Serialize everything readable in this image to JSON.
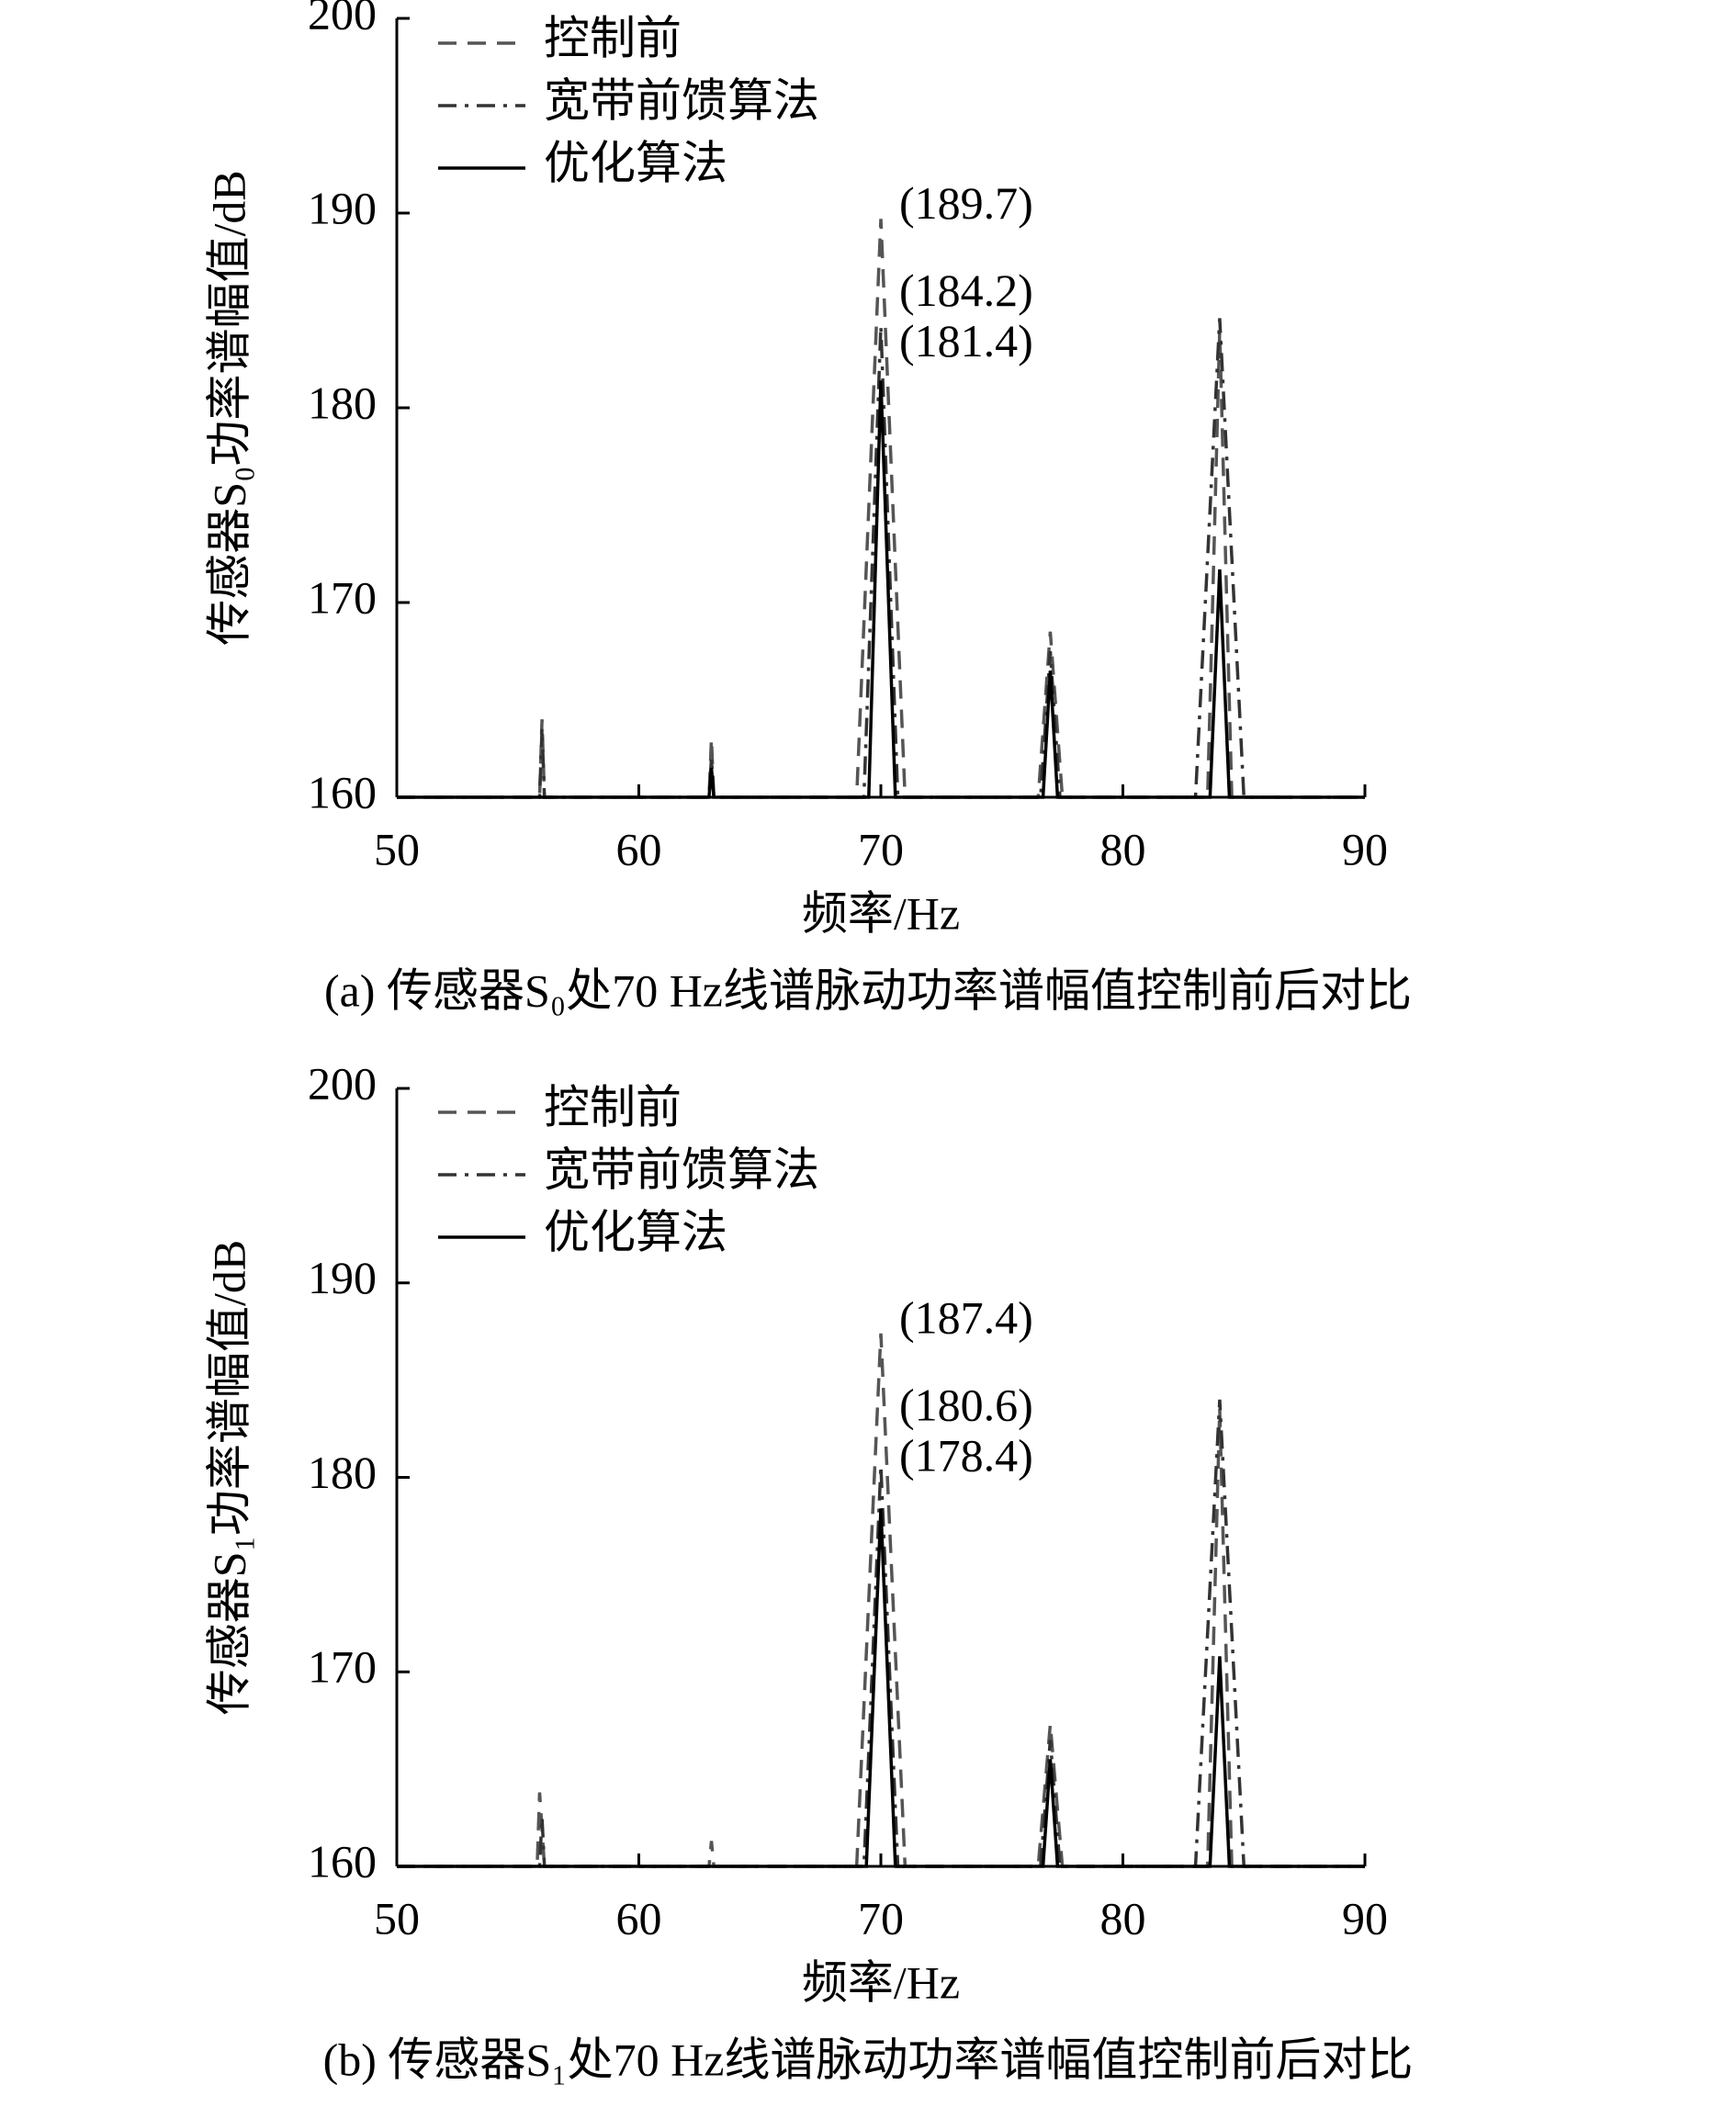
{
  "chart_data": [
    {
      "type": "line",
      "xlabel": "频率/Hz",
      "ylabel": "传感器S₀功率谱幅值/dB",
      "caption": "(a) 传感器S₀处70 Hz线谱脉动功率谱幅值控制前后对比",
      "xlim": [
        50,
        90
      ],
      "ylim": [
        160,
        200
      ],
      "xticks": [
        50,
        60,
        70,
        80,
        90
      ],
      "yticks": [
        160,
        170,
        180,
        190,
        200
      ],
      "legend": "upper left",
      "series": [
        {
          "name": "控制前",
          "color": "#555555",
          "style": "dashed",
          "x": [
            50,
            55.9,
            56,
            56.1,
            62.9,
            63,
            63.1,
            69,
            70,
            71,
            76.5,
            77,
            77.5,
            83.5,
            84,
            84.5,
            90
          ],
          "values": [
            160,
            160,
            164,
            160,
            160,
            163,
            160,
            160,
            189.7,
            160,
            160,
            168.5,
            160,
            160,
            184,
            160,
            160
          ]
        },
        {
          "name": "宽带前馈算法",
          "color": "#333333",
          "style": "dashdot",
          "x": [
            50,
            55.9,
            56,
            56.1,
            62.9,
            63,
            63.1,
            69.3,
            70,
            70.7,
            76.6,
            77,
            77.4,
            83,
            84,
            85,
            90
          ],
          "values": [
            160,
            160,
            163.5,
            160,
            160,
            162,
            160,
            160,
            184.2,
            160,
            160,
            167.5,
            160,
            160,
            184.6,
            160,
            160
          ]
        },
        {
          "name": "优化算法",
          "color": "#000000",
          "style": "solid",
          "x": [
            50,
            62.9,
            63,
            63.1,
            69.5,
            70,
            70.6,
            76.7,
            77,
            77.3,
            83.6,
            84,
            84.4,
            90
          ],
          "values": [
            160,
            160,
            161.5,
            160,
            160,
            181.4,
            160,
            160,
            166.5,
            160,
            160,
            171.7,
            160,
            160
          ]
        }
      ],
      "annotations": [
        "(189.7)",
        "(184.2)",
        "(181.4)"
      ]
    },
    {
      "type": "line",
      "xlabel": "频率/Hz",
      "ylabel": "传感器S₁功率谱幅值/dB",
      "caption": "(b) 传感器S₁处70 Hz线谱脉动功率谱幅值控制前后对比",
      "xlim": [
        50,
        90
      ],
      "ylim": [
        160,
        200
      ],
      "xticks": [
        50,
        60,
        70,
        80,
        90
      ],
      "yticks": [
        160,
        170,
        180,
        190,
        200
      ],
      "legend": "upper left",
      "series": [
        {
          "name": "控制前",
          "color": "#555555",
          "style": "dashed",
          "x": [
            50,
            55.8,
            55.9,
            56.1,
            62.9,
            63,
            63.1,
            69,
            70,
            71,
            76.5,
            77,
            77.5,
            83.5,
            84,
            84.5,
            90
          ],
          "values": [
            160,
            160,
            163.8,
            160,
            160,
            161.3,
            160,
            160,
            187.4,
            160,
            160,
            167.3,
            160,
            160,
            183.5,
            160,
            160
          ]
        },
        {
          "name": "宽带前馈算法",
          "color": "#333333",
          "style": "dashdot",
          "x": [
            50,
            55.9,
            56,
            56.1,
            69.3,
            70,
            70.7,
            76.6,
            77,
            77.4,
            83,
            84,
            85,
            90
          ],
          "values": [
            160,
            160,
            162.5,
            160,
            160,
            180.6,
            160,
            160,
            166.5,
            160,
            160,
            184,
            160,
            160
          ]
        },
        {
          "name": "优化算法",
          "color": "#000000",
          "style": "solid",
          "x": [
            50,
            69.4,
            70,
            70.6,
            76.7,
            77,
            77.3,
            83.6,
            84,
            84.4,
            90
          ],
          "values": [
            160,
            160,
            178.4,
            160,
            160,
            165.5,
            160,
            160,
            170.8,
            160,
            160
          ]
        }
      ],
      "annotations": [
        "(187.4)",
        "(180.6)",
        "(178.4)"
      ]
    }
  ]
}
